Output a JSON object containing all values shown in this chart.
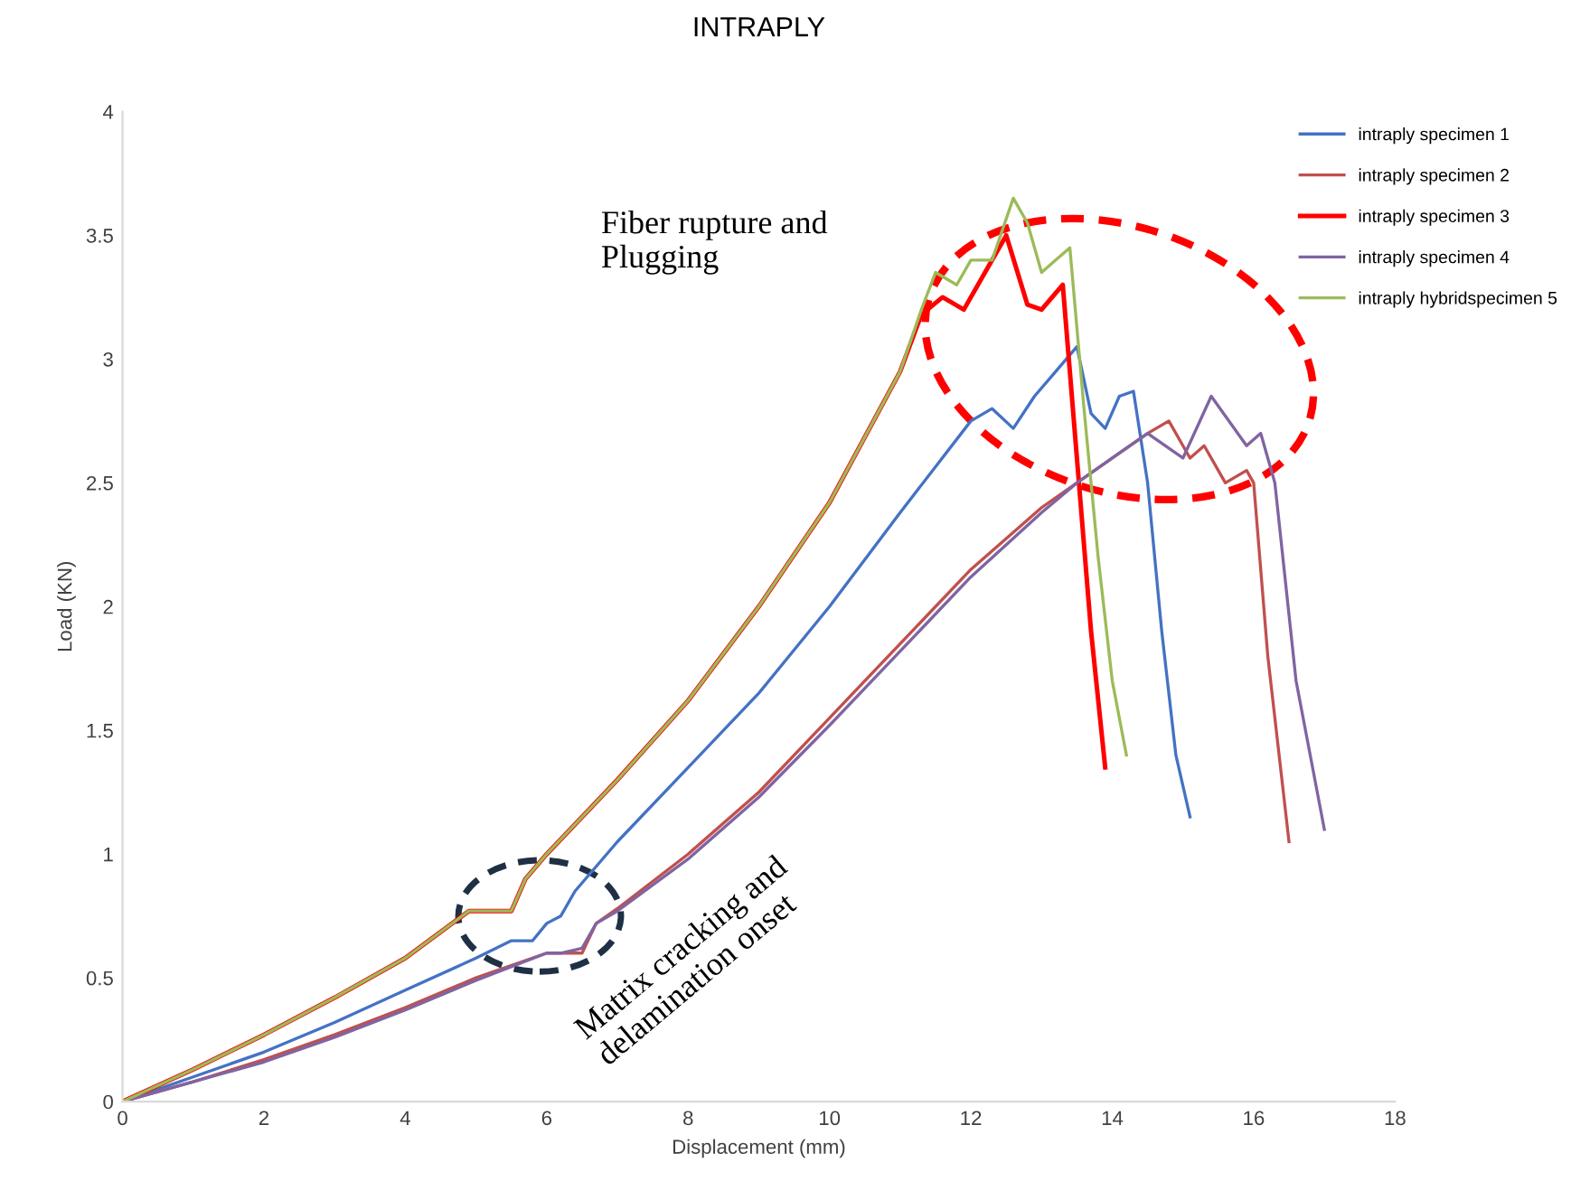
{
  "chart_data": {
    "type": "line",
    "title": "INTRAPLY",
    "xlabel": "Displacement (mm)",
    "ylabel": "Load (KN)",
    "xlim": [
      0,
      18
    ],
    "xticks": [
      0,
      2,
      4,
      6,
      8,
      10,
      12,
      14,
      16,
      18
    ],
    "ylim": [
      0,
      4
    ],
    "yticks": [
      0,
      0.5,
      1,
      1.5,
      2,
      2.5,
      3,
      3.5,
      4
    ],
    "grid": false,
    "legend": "top right",
    "marker": "none",
    "line_style": "solid",
    "series": [
      {
        "name": "intraply specimen 1",
        "color": "#4472c4",
        "x": [
          0,
          1,
          2,
          3,
          4,
          5,
          5.5,
          5.8,
          6.0,
          6.2,
          6.4,
          7,
          8,
          9,
          10,
          11,
          12,
          12.3,
          12.6,
          12.9,
          13.2,
          13.5,
          13.7,
          13.9,
          14.1,
          14.3,
          14.5,
          14.7,
          14.9,
          15.1
        ],
        "values": [
          0,
          0.1,
          0.2,
          0.32,
          0.45,
          0.58,
          0.65,
          0.65,
          0.72,
          0.75,
          0.85,
          1.05,
          1.35,
          1.65,
          2.0,
          2.38,
          2.75,
          2.8,
          2.72,
          2.85,
          2.95,
          3.05,
          2.78,
          2.72,
          2.85,
          2.87,
          2.5,
          1.9,
          1.4,
          1.15
        ]
      },
      {
        "name": "intraply specimen 2",
        "color": "#c0504d",
        "x": [
          0,
          1,
          2,
          3,
          4,
          5,
          6,
          6.2,
          6.5,
          6.7,
          7,
          8,
          9,
          10,
          11,
          12,
          13,
          13.5,
          14.0,
          14.5,
          14.8,
          15.1,
          15.3,
          15.6,
          15.9,
          16.0,
          16.2,
          16.5
        ],
        "values": [
          0,
          0.08,
          0.17,
          0.27,
          0.38,
          0.5,
          0.6,
          0.6,
          0.6,
          0.72,
          0.78,
          1.0,
          1.25,
          1.55,
          1.85,
          2.15,
          2.4,
          2.5,
          2.6,
          2.7,
          2.75,
          2.6,
          2.65,
          2.5,
          2.55,
          2.5,
          1.8,
          1.05
        ]
      },
      {
        "name": "intraply specimen 3",
        "color": "#ff0000",
        "x": [
          0,
          1,
          2,
          3,
          4,
          4.9,
          5.2,
          5.5,
          5.7,
          6,
          7,
          8,
          9,
          10,
          11,
          11.3,
          11.6,
          11.9,
          12.2,
          12.5,
          12.8,
          13.0,
          13.3,
          13.5,
          13.7,
          13.9
        ],
        "values": [
          0,
          0.13,
          0.27,
          0.42,
          0.58,
          0.77,
          0.77,
          0.77,
          0.9,
          1.0,
          1.3,
          1.62,
          2.0,
          2.42,
          2.95,
          3.18,
          3.25,
          3.2,
          3.35,
          3.5,
          3.22,
          3.2,
          3.3,
          2.6,
          1.9,
          1.35
        ]
      },
      {
        "name": "intraply specimen 4",
        "color": "#8064a2",
        "x": [
          0,
          1,
          2,
          3,
          4,
          5,
          6,
          6.2,
          6.5,
          6.7,
          7,
          8,
          9,
          10,
          11,
          12,
          13,
          13.5,
          14.0,
          14.5,
          15.0,
          15.4,
          15.9,
          16.1,
          16.3,
          16.6,
          17.0
        ],
        "values": [
          0,
          0.08,
          0.16,
          0.26,
          0.37,
          0.49,
          0.6,
          0.6,
          0.62,
          0.72,
          0.77,
          0.98,
          1.23,
          1.52,
          1.82,
          2.12,
          2.38,
          2.5,
          2.6,
          2.7,
          2.6,
          2.85,
          2.65,
          2.7,
          2.5,
          1.7,
          1.1
        ]
      },
      {
        "name": "intraply hybridspecimen 5",
        "color": "#9bbb59",
        "x": [
          0,
          1,
          2,
          3,
          4,
          4.9,
          5.2,
          5.5,
          5.7,
          6,
          7,
          8,
          9,
          10,
          11,
          11.3,
          11.5,
          11.8,
          12.0,
          12.3,
          12.6,
          12.8,
          13.0,
          13.2,
          13.4,
          13.6,
          13.8,
          14.0,
          14.2
        ],
        "values": [
          0,
          0.13,
          0.27,
          0.42,
          0.58,
          0.77,
          0.77,
          0.77,
          0.9,
          1.0,
          1.3,
          1.62,
          2.0,
          2.42,
          2.95,
          3.2,
          3.35,
          3.3,
          3.4,
          3.4,
          3.65,
          3.55,
          3.35,
          3.4,
          3.45,
          2.8,
          2.2,
          1.7,
          1.4
        ]
      }
    ],
    "annotations": [
      "Fiber rupture and\nPlugging",
      "Matrix cracking and\ndelamination onset"
    ]
  }
}
